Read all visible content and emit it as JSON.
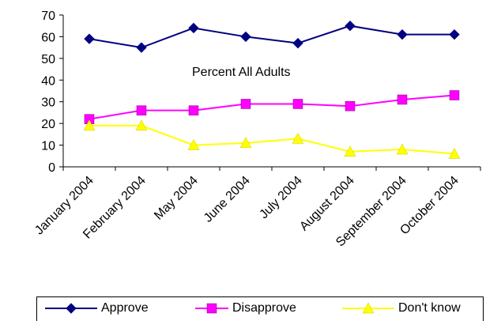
{
  "chart_data": {
    "type": "line",
    "title": "",
    "annotation": "Percent All Adults",
    "xlabel": "",
    "ylabel": "",
    "categories": [
      "January 2004",
      "February 2004",
      "May 2004",
      "June 2004",
      "July 2004",
      "August 2004",
      "September 2004",
      "October 2004"
    ],
    "ylim": [
      0,
      70
    ],
    "yticks": [
      0,
      10,
      20,
      30,
      40,
      50,
      60,
      70
    ],
    "grid": false,
    "legend_position": "bottom",
    "series": [
      {
        "name": "Approve",
        "values": [
          59,
          55,
          64,
          60,
          57,
          65,
          61,
          61
        ],
        "color": "#000080",
        "marker": "diamond"
      },
      {
        "name": "Disapprove",
        "values": [
          22,
          26,
          26,
          29,
          29,
          28,
          31,
          33
        ],
        "color": "#FF00FF",
        "marker": "square"
      },
      {
        "name": "Don't know",
        "values": [
          19,
          19,
          10,
          11,
          13,
          7,
          8,
          6
        ],
        "color": "#FFFF00",
        "marker": "triangle"
      }
    ]
  }
}
